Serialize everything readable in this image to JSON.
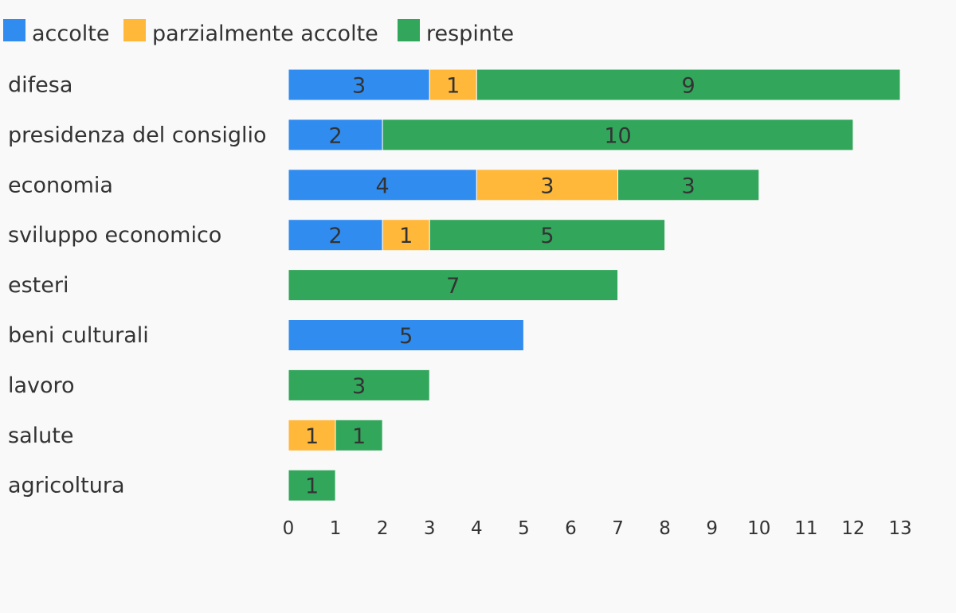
{
  "chart_data": {
    "type": "bar",
    "orientation": "horizontal",
    "stacked": true,
    "title": "",
    "xlabel": "",
    "ylabel": "",
    "xlim": [
      0,
      13
    ],
    "x_ticks": [
      "0",
      "1",
      "2",
      "3",
      "4",
      "5",
      "6",
      "7",
      "8",
      "9",
      "10",
      "11",
      "12",
      "13"
    ],
    "grid": false,
    "legend_position": "top-left",
    "categories": [
      "difesa",
      "presidenza del consiglio",
      "economia",
      "sviluppo economico",
      "esteri",
      "beni culturali",
      "lavoro",
      "salute",
      "agricoltura"
    ],
    "series": [
      {
        "name": "accolte",
        "color": "#318cf0",
        "values": [
          3,
          2,
          4,
          2,
          0,
          5,
          0,
          0,
          0
        ]
      },
      {
        "name": "parzialmente accolte",
        "color": "#ffb83a",
        "values": [
          1,
          0,
          3,
          1,
          0,
          0,
          0,
          1,
          0
        ]
      },
      {
        "name": "respinte",
        "color": "#32a65b",
        "values": [
          9,
          10,
          3,
          5,
          7,
          0,
          3,
          1,
          1
        ]
      }
    ]
  }
}
